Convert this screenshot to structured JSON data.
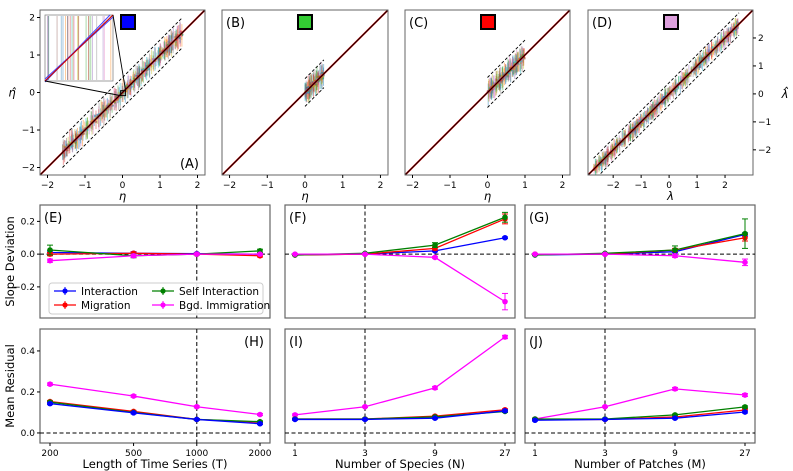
{
  "chart_data": [
    {
      "panel": "(A)",
      "type": "scatter",
      "xlabel": "η",
      "ylabel": "η̂",
      "xlim": [
        -2.2,
        2.2
      ],
      "ylim": [
        -2.2,
        2.2
      ],
      "xticks": [
        "−2",
        "−1",
        "0",
        "1",
        "2"
      ],
      "yticks": [
        "−2",
        "−1",
        "0",
        "1",
        "2"
      ],
      "true_range": [
        -1.6,
        1.6
      ],
      "band_halfwidth": 0.4,
      "swatch_color": "#0000ff",
      "has_inset": true
    },
    {
      "panel": "(B)",
      "type": "scatter",
      "xlabel": "η",
      "xlim": [
        -2.2,
        2.2
      ],
      "ylim": [
        -2.2,
        2.2
      ],
      "xticks": [
        "−2",
        "−1",
        "0",
        "1",
        "2"
      ],
      "true_range": [
        0,
        0.5
      ],
      "band_halfwidth": 0.37,
      "swatch_color": "#33cc33"
    },
    {
      "panel": "(C)",
      "type": "scatter",
      "xlabel": "η",
      "xlim": [
        -2.2,
        2.2
      ],
      "ylim": [
        -2.2,
        2.2
      ],
      "xticks": [
        "−2",
        "−1",
        "0",
        "1",
        "2"
      ],
      "true_range": [
        0,
        1.0
      ],
      "band_halfwidth": 0.4,
      "swatch_color": "#ff0000"
    },
    {
      "panel": "(D)",
      "type": "scatter",
      "xlabel": "λ",
      "ylabel": "λ̂",
      "xlim": [
        -2.9,
        3.0
      ],
      "ylim": [
        -2.9,
        3.0
      ],
      "xticks": [
        "−2",
        "−1",
        "0",
        "1",
        "2"
      ],
      "yticks": [
        "−2",
        "−1",
        "0",
        "1",
        "2"
      ],
      "true_range": [
        -2.7,
        2.5
      ],
      "band_halfwidth": 0.4,
      "swatch_color": "#dda0dd"
    },
    {
      "panel": "(E)",
      "type": "line",
      "ylabel": "Slope Deviation",
      "x": [
        200,
        500,
        1000,
        2000
      ],
      "xscale": "log",
      "ylim": [
        -0.39,
        0.3
      ],
      "yticks": [
        "0.2",
        "0.0",
        "−0.2"
      ],
      "ytick_values": [
        0.2,
        0.0,
        -0.2
      ],
      "vline": 1000,
      "hline": 0,
      "series": [
        {
          "name": "Interaction",
          "color": "#0000ff",
          "values": [
            0.01,
            0.005,
            0.003,
            0.0
          ],
          "err": [
            0.01,
            0.01,
            0.005,
            0.005
          ]
        },
        {
          "name": "Migration",
          "color": "#ff0000",
          "values": [
            0.0,
            0.005,
            0.0,
            -0.01
          ],
          "err": [
            0.01,
            0.008,
            0.005,
            0.008
          ]
        },
        {
          "name": "Self Interaction",
          "color": "#008000",
          "values": [
            0.025,
            -0.01,
            0.0,
            0.02
          ],
          "err": [
            0.03,
            0.012,
            0.006,
            0.01
          ]
        },
        {
          "name": "Bgd. Immigration",
          "color": "#ff00ff",
          "values": [
            -0.04,
            -0.01,
            0.0,
            0.0
          ],
          "err": [
            0.01,
            0.01,
            0.005,
            0.005
          ]
        }
      ]
    },
    {
      "panel": "(F)",
      "type": "line",
      "x": [
        1,
        3,
        9,
        27
      ],
      "xscale": "log",
      "ylim": [
        -0.39,
        0.3
      ],
      "vline": 3,
      "hline": 0,
      "series": [
        {
          "name": "Interaction",
          "color": "#0000ff",
          "values": [
            -0.005,
            0.0,
            0.02,
            0.1
          ],
          "err": [
            0.003,
            0.003,
            0.006,
            0.005
          ]
        },
        {
          "name": "Migration",
          "color": "#ff0000",
          "values": [
            -0.005,
            0.0,
            0.035,
            0.215
          ],
          "err": [
            0.003,
            0.003,
            0.01,
            0.03
          ]
        },
        {
          "name": "Self Interaction",
          "color": "#008000",
          "values": [
            -0.005,
            0.005,
            0.055,
            0.225
          ],
          "err": [
            0.003,
            0.003,
            0.015,
            0.03
          ]
        },
        {
          "name": "Bgd. Immigration",
          "color": "#ff00ff",
          "values": [
            0.0,
            0.0,
            -0.02,
            -0.29
          ],
          "err": [
            0.003,
            0.003,
            0.006,
            0.05
          ]
        }
      ]
    },
    {
      "panel": "(G)",
      "type": "line",
      "x": [
        1,
        3,
        9,
        27
      ],
      "xscale": "log",
      "ylim": [
        -0.39,
        0.3
      ],
      "vline": 3,
      "hline": 0,
      "series": [
        {
          "name": "Interaction",
          "color": "#0000ff",
          "values": [
            -0.005,
            0.0,
            0.015,
            0.12
          ],
          "err": [
            0.003,
            0.003,
            0.006,
            0.01
          ]
        },
        {
          "name": "Migration",
          "color": "#ff0000",
          "values": [
            0.0,
            0.0,
            0.025,
            0.1
          ],
          "err": [
            0.003,
            0.003,
            0.01,
            0.02
          ]
        },
        {
          "name": "Self Interaction",
          "color": "#008000",
          "values": [
            -0.005,
            0.005,
            0.025,
            0.125
          ],
          "err": [
            0.003,
            0.003,
            0.025,
            0.09
          ]
        },
        {
          "name": "Bgd. Immigration",
          "color": "#ff00ff",
          "values": [
            0.0,
            0.0,
            -0.01,
            -0.05
          ],
          "err": [
            0.003,
            0.003,
            0.01,
            0.02
          ]
        }
      ]
    },
    {
      "panel": "(H)",
      "type": "line",
      "ylabel": "Mean Residual",
      "xlabel": "Length of Time Series (T)",
      "x": [
        200,
        500,
        1000,
        2000
      ],
      "xticks": [
        "200",
        "500",
        "1000",
        "2000"
      ],
      "xscale": "log",
      "ylim": [
        -0.049,
        0.507
      ],
      "yticks": [
        "0.4",
        "0.2",
        "0.0"
      ],
      "ytick_values": [
        0.4,
        0.2,
        0.0
      ],
      "vline": 1000,
      "hline": 0,
      "series": [
        {
          "name": "Bgd. Immigration",
          "color": "#ff00ff",
          "values": [
            0.238,
            0.18,
            0.128,
            0.09
          ],
          "err": [
            0.006,
            0.006,
            0.005,
            0.005
          ]
        },
        {
          "name": "Migration",
          "color": "#ff0000",
          "values": [
            0.153,
            0.105,
            0.066,
            0.052
          ],
          "err": [
            0.005,
            0.005,
            0.004,
            0.004
          ]
        },
        {
          "name": "Self Interaction",
          "color": "#008000",
          "values": [
            0.15,
            0.1,
            0.066,
            0.055
          ],
          "err": [
            0.005,
            0.005,
            0.004,
            0.004
          ]
        },
        {
          "name": "Interaction",
          "color": "#0000ff",
          "values": [
            0.143,
            0.098,
            0.066,
            0.045
          ],
          "err": [
            0.005,
            0.005,
            0.004,
            0.004
          ]
        }
      ]
    },
    {
      "panel": "(I)",
      "type": "line",
      "xlabel": "Number of Species (N)",
      "x": [
        1,
        3,
        9,
        27
      ],
      "xticks": [
        "1",
        "3",
        "9",
        "27"
      ],
      "xscale": "log",
      "ylim": [
        -0.049,
        0.507
      ],
      "vline": 3,
      "hline": 0,
      "series": [
        {
          "name": "Bgd. Immigration",
          "color": "#ff00ff",
          "values": [
            0.088,
            0.128,
            0.22,
            0.468
          ],
          "err": [
            0.005,
            0.004,
            0.007,
            0.008
          ]
        },
        {
          "name": "Migration",
          "color": "#ff0000",
          "values": [
            0.068,
            0.068,
            0.082,
            0.113
          ],
          "err": [
            0.004,
            0.004,
            0.004,
            0.005
          ]
        },
        {
          "name": "Self Interaction",
          "color": "#008000",
          "values": [
            0.068,
            0.068,
            0.078,
            0.105
          ],
          "err": [
            0.004,
            0.004,
            0.004,
            0.005
          ]
        },
        {
          "name": "Interaction",
          "color": "#0000ff",
          "values": [
            0.066,
            0.066,
            0.072,
            0.108
          ],
          "err": [
            0.004,
            0.004,
            0.004,
            0.005
          ]
        }
      ]
    },
    {
      "panel": "(J)",
      "type": "line",
      "xlabel": "Number of Patches (M)",
      "x": [
        1,
        3,
        9,
        27
      ],
      "xticks": [
        "1",
        "3",
        "9",
        "27"
      ],
      "xscale": "log",
      "ylim": [
        -0.049,
        0.507
      ],
      "vline": 3,
      "hline": 0,
      "series": [
        {
          "name": "Bgd. Immigration",
          "color": "#ff00ff",
          "values": [
            0.068,
            0.128,
            0.215,
            0.185
          ],
          "err": [
            0.005,
            0.004,
            0.007,
            0.007
          ]
        },
        {
          "name": "Migration",
          "color": "#ff0000",
          "values": [
            0.066,
            0.066,
            0.078,
            0.112
          ],
          "err": [
            0.004,
            0.004,
            0.004,
            0.005
          ]
        },
        {
          "name": "Self Interaction",
          "color": "#008000",
          "values": [
            0.068,
            0.068,
            0.088,
            0.127
          ],
          "err": [
            0.004,
            0.004,
            0.004,
            0.005
          ]
        },
        {
          "name": "Interaction",
          "color": "#0000ff",
          "values": [
            0.062,
            0.066,
            0.072,
            0.102
          ],
          "err": [
            0.004,
            0.004,
            0.004,
            0.005
          ]
        }
      ]
    }
  ],
  "legend": {
    "placement": "bottom-left of panel (E)",
    "items": [
      {
        "label": "Interaction",
        "color": "#0000ff"
      },
      {
        "label": "Self Interaction",
        "color": "#008000"
      },
      {
        "label": "Migration",
        "color": "#ff0000"
      },
      {
        "label": "Bgd. Immigration",
        "color": "#ff00ff"
      }
    ]
  }
}
